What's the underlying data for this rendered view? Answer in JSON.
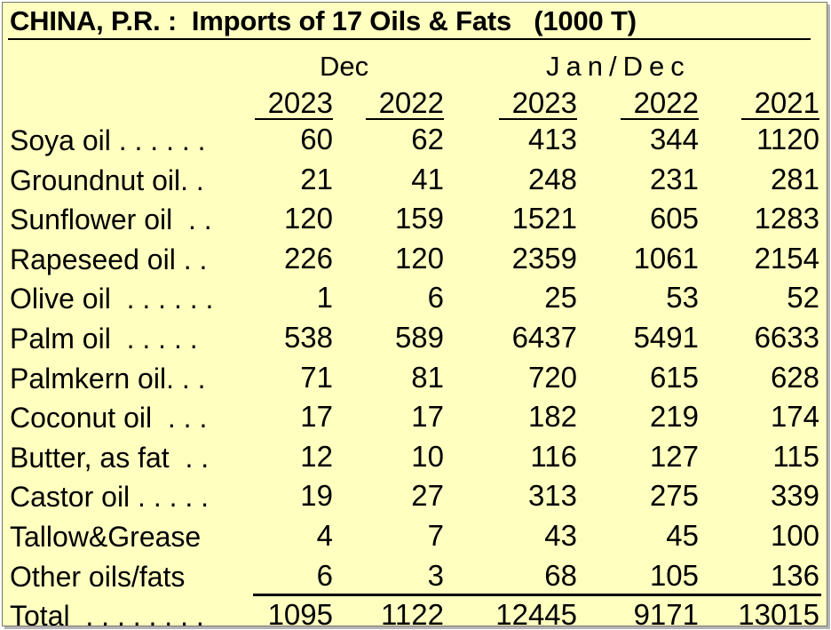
{
  "title": "CHINA, P.R. :  Imports of 17 Oils & Fats   (1000 T)",
  "headers": {
    "dec": "Dec",
    "jandec": "Jan/Dec",
    "years": [
      "2023",
      "2022",
      "2023",
      "2022",
      "2021"
    ]
  },
  "rows": [
    {
      "label": "Soya oil . . . . . .",
      "values": [
        "60",
        "62",
        "413",
        "344",
        "1120"
      ]
    },
    {
      "label": "Groundnut oil. .",
      "values": [
        "21",
        "41",
        "248",
        "231",
        "281"
      ]
    },
    {
      "label": "Sunflower oil  . .",
      "values": [
        "120",
        "159",
        "1521",
        "605",
        "1283"
      ]
    },
    {
      "label": "Rapeseed oil . .",
      "values": [
        "226",
        "120",
        "2359",
        "1061",
        "2154"
      ]
    },
    {
      "label": "Olive oil  . . . . . .",
      "values": [
        "1",
        "6",
        "25",
        "53",
        "52"
      ]
    },
    {
      "label": "Palm oil  . . . . .",
      "values": [
        "538",
        "589",
        "6437",
        "5491",
        "6633"
      ]
    },
    {
      "label": "Palmkern oil. . .",
      "values": [
        "71",
        "81",
        "720",
        "615",
        "628"
      ]
    },
    {
      "label": "Coconut oil  . . .",
      "values": [
        "17",
        "17",
        "182",
        "219",
        "174"
      ]
    },
    {
      "label": "Butter, as fat  . .",
      "values": [
        "12",
        "10",
        "116",
        "127",
        "115"
      ]
    },
    {
      "label": "Castor oil . . . . .",
      "values": [
        "19",
        "27",
        "313",
        "275",
        "339"
      ]
    },
    {
      "label": "Tallow&Grease",
      "values": [
        "4",
        "7",
        "43",
        "45",
        "100"
      ]
    },
    {
      "label": "Other oils/fats",
      "values": [
        "6",
        "3",
        "68",
        "105",
        "136"
      ]
    }
  ],
  "total": {
    "label": "Total  . . . . . . . .",
    "values": [
      "1095",
      "1122",
      "12445",
      "9171",
      "13015"
    ]
  },
  "colors": {
    "background": "#ffffc0",
    "text": "#000000"
  }
}
